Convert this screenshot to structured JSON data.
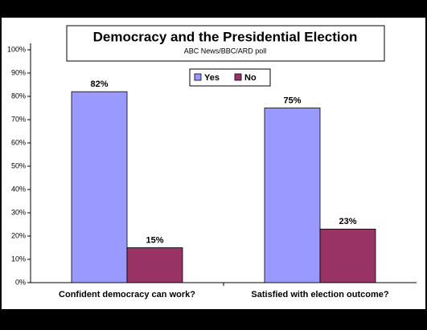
{
  "chart_data": {
    "type": "bar",
    "title": "Democracy and the Presidential Election",
    "subtitle": "ABC News/BBC/ARD poll",
    "categories": [
      "Confident democracy can work?",
      "Satisfied with election outcome?"
    ],
    "series": [
      {
        "name": "Yes",
        "color": "#9999ff",
        "values": [
          82,
          75
        ],
        "value_labels": [
          "82%",
          "75%"
        ]
      },
      {
        "name": "No",
        "color": "#993366",
        "values": [
          15,
          23
        ],
        "value_labels": [
          "15%",
          "23%"
        ]
      }
    ],
    "ylim": [
      0,
      100
    ],
    "yticks": [
      {
        "value": 0,
        "label": "0%"
      },
      {
        "value": 10,
        "label": "10%"
      },
      {
        "value": 20,
        "label": "20%"
      },
      {
        "value": 30,
        "label": "30%"
      },
      {
        "value": 40,
        "label": "40%"
      },
      {
        "value": 50,
        "label": "50%"
      },
      {
        "value": 60,
        "label": "60%"
      },
      {
        "value": 70,
        "label": "70%"
      },
      {
        "value": 80,
        "label": "80%"
      },
      {
        "value": 90,
        "label": "90%"
      },
      {
        "value": 100,
        "label": "100%"
      }
    ],
    "grid": false
  }
}
